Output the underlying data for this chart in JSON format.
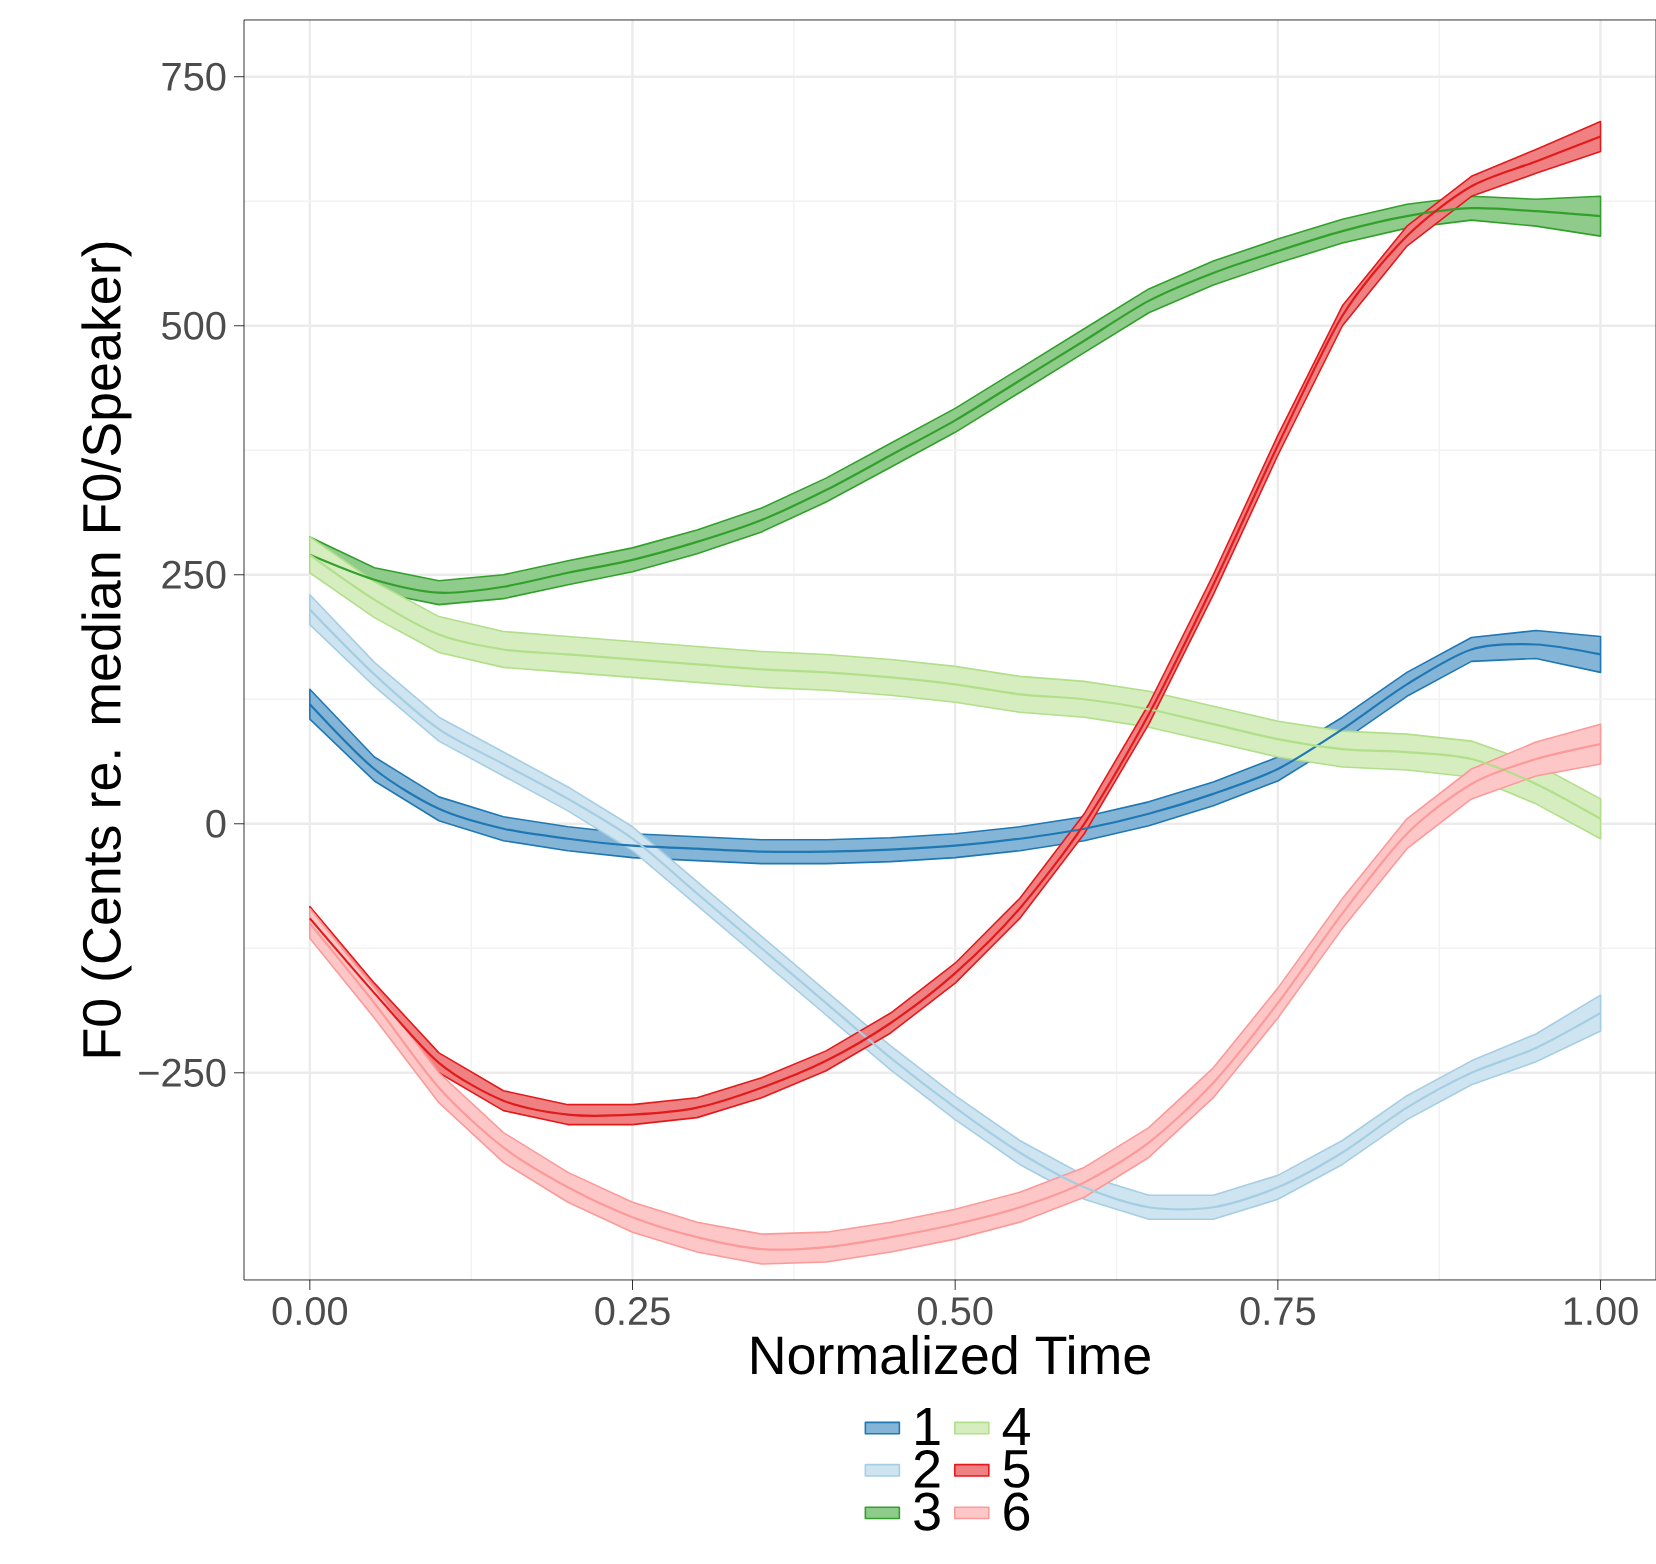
{
  "chart_data": {
    "type": "line",
    "xlabel": "Normalized Time",
    "ylabel": "F0 (Cents re. median F0/Speaker)",
    "x": [
      0,
      0.05,
      0.1,
      0.15,
      0.2,
      0.25,
      0.3,
      0.35,
      0.4,
      0.45,
      0.5,
      0.55,
      0.6,
      0.65,
      0.7,
      0.75,
      0.8,
      0.85,
      0.9,
      0.95,
      1.0
    ],
    "xlim": [
      -0.051,
      1.043
    ],
    "ylim": [
      -458,
      807
    ],
    "xticks": [
      {
        "value": 0,
        "label": "0.00"
      },
      {
        "value": 0.25,
        "label": "0.25"
      },
      {
        "value": 0.5,
        "label": "0.50"
      },
      {
        "value": 0.75,
        "label": "0.75"
      },
      {
        "value": 1,
        "label": "1.00"
      }
    ],
    "yticks": [
      {
        "value": -250,
        "label": "−250"
      },
      0,
      250,
      500,
      750
    ],
    "grid": true,
    "legend": "bottom",
    "marker": "none",
    "line_style": "solid",
    "series": [
      {
        "name": "1",
        "color": "#1f78b4",
        "values": [
          120,
          55,
          15,
          -5,
          -15,
          -22,
          -25,
          -28,
          -28,
          -26,
          -22,
          -15,
          -5,
          10,
          30,
          55,
          95,
          140,
          175,
          180,
          170
        ],
        "lower": [
          105,
          43,
          3,
          -17,
          -27,
          -34,
          -37,
          -40,
          -40,
          -38,
          -34,
          -27,
          -17,
          -2,
          18,
          43,
          83,
          128,
          163,
          166,
          152
        ],
        "upper": [
          135,
          67,
          27,
          7,
          -3,
          -10,
          -13,
          -16,
          -16,
          -14,
          -10,
          -3,
          7,
          22,
          42,
          67,
          107,
          152,
          187,
          194,
          188
        ]
      },
      {
        "name": "2",
        "color": "#a6cee3",
        "values": [
          215,
          150,
          95,
          60,
          25,
          -15,
          -70,
          -125,
          -180,
          -235,
          -285,
          -330,
          -365,
          -385,
          -385,
          -365,
          -330,
          -285,
          -250,
          -225,
          -190
        ],
        "lower": [
          200,
          138,
          83,
          48,
          13,
          -27,
          -82,
          -137,
          -192,
          -247,
          -297,
          -342,
          -377,
          -397,
          -397,
          -377,
          -342,
          -297,
          -262,
          -239,
          -208
        ],
        "upper": [
          230,
          162,
          107,
          72,
          37,
          -3,
          -58,
          -113,
          -168,
          -223,
          -273,
          -318,
          -353,
          -373,
          -373,
          -353,
          -318,
          -273,
          -238,
          -211,
          -172
        ]
      },
      {
        "name": "3",
        "color": "#33a02c",
        "values": [
          270,
          245,
          232,
          238,
          252,
          265,
          283,
          305,
          335,
          370,
          405,
          445,
          485,
          525,
          553,
          575,
          595,
          610,
          618,
          615,
          610
        ],
        "lower": [
          252,
          233,
          220,
          226,
          240,
          253,
          271,
          293,
          323,
          358,
          393,
          433,
          473,
          513,
          541,
          563,
          583,
          598,
          606,
          600,
          590
        ],
        "upper": [
          288,
          257,
          244,
          250,
          264,
          277,
          295,
          317,
          347,
          382,
          417,
          457,
          497,
          537,
          565,
          587,
          607,
          622,
          630,
          627,
          630
        ]
      },
      {
        "name": "4",
        "color": "#b2df8a",
        "values": [
          270,
          225,
          190,
          175,
          170,
          165,
          160,
          155,
          152,
          147,
          140,
          130,
          125,
          115,
          100,
          85,
          75,
          72,
          65,
          40,
          5
        ],
        "lower": [
          252,
          207,
          172,
          157,
          152,
          147,
          142,
          137,
          134,
          129,
          122,
          112,
          107,
          97,
          82,
          67,
          57,
          54,
          47,
          20,
          -15
        ],
        "upper": [
          288,
          243,
          208,
          193,
          188,
          183,
          178,
          173,
          170,
          165,
          158,
          148,
          143,
          133,
          118,
          103,
          93,
          90,
          83,
          60,
          25
        ]
      },
      {
        "name": "5",
        "color": "#e31a1c",
        "values": [
          -95,
          -170,
          -240,
          -278,
          -292,
          -292,
          -285,
          -265,
          -238,
          -200,
          -150,
          -85,
          0,
          110,
          240,
          380,
          510,
          590,
          640,
          665,
          690
        ],
        "lower": [
          -107,
          -180,
          -250,
          -288,
          -302,
          -302,
          -295,
          -275,
          -248,
          -210,
          -160,
          -95,
          -10,
          100,
          230,
          370,
          500,
          580,
          630,
          653,
          675
        ],
        "upper": [
          -83,
          -160,
          -230,
          -268,
          -282,
          -282,
          -275,
          -255,
          -228,
          -190,
          -140,
          -75,
          10,
          120,
          250,
          390,
          520,
          600,
          650,
          677,
          705
        ]
      },
      {
        "name": "6",
        "color": "#fb9a99",
        "values": [
          -100,
          -180,
          -265,
          -325,
          -365,
          -395,
          -415,
          -427,
          -425,
          -415,
          -402,
          -385,
          -360,
          -320,
          -260,
          -180,
          -90,
          -10,
          40,
          65,
          80
        ],
        "lower": [
          -115,
          -195,
          -280,
          -340,
          -380,
          -410,
          -430,
          -442,
          -440,
          -430,
          -417,
          -400,
          -375,
          -335,
          -275,
          -195,
          -105,
          -25,
          25,
          48,
          60
        ],
        "upper": [
          -85,
          -165,
          -250,
          -310,
          -350,
          -380,
          -400,
          -412,
          -410,
          -400,
          -387,
          -370,
          -345,
          -305,
          -245,
          -165,
          -75,
          5,
          55,
          82,
          100
        ]
      }
    ]
  }
}
